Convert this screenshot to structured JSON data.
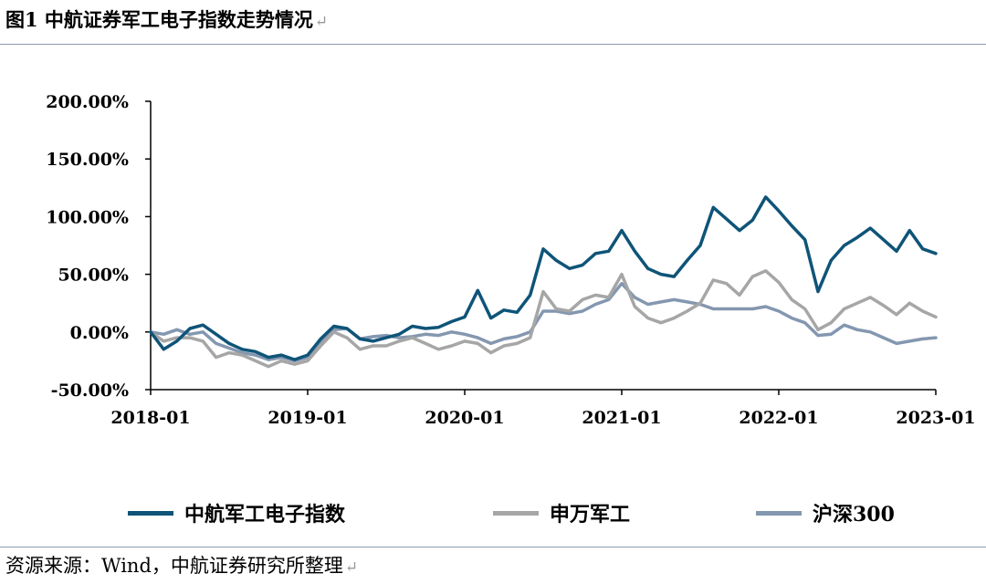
{
  "figure": {
    "title": "图1 中航证券军工电子指数走势情况",
    "source": "资源来源：Wind，中航证券研究所整理"
  },
  "chart_data": {
    "type": "line",
    "title": "",
    "xlabel": "",
    "ylabel": "",
    "x_ticks": [
      "2018-01",
      "2019-01",
      "2020-01",
      "2021-01",
      "2022-01",
      "2023-01"
    ],
    "y_ticks": [
      "200.00%",
      "150.00%",
      "100.00%",
      "50.00%",
      "0.00%",
      "-50.00%"
    ],
    "x_range": [
      "2018-01",
      "2023-01"
    ],
    "ylim": [
      -50,
      200
    ],
    "y_unit": "%",
    "grid": false,
    "legend_position": "bottom",
    "series": [
      {
        "name": "中航军工电子指数",
        "color": "#0f5478",
        "points": [
          [
            "2018-01",
            0
          ],
          [
            "2018-02",
            -15
          ],
          [
            "2018-03",
            -8
          ],
          [
            "2018-04",
            3
          ],
          [
            "2018-05",
            6
          ],
          [
            "2018-06",
            -2
          ],
          [
            "2018-07",
            -10
          ],
          [
            "2018-08",
            -15
          ],
          [
            "2018-09",
            -17
          ],
          [
            "2018-10",
            -22
          ],
          [
            "2018-11",
            -20
          ],
          [
            "2018-12",
            -24
          ],
          [
            "2019-01",
            -20
          ],
          [
            "2019-02",
            -6
          ],
          [
            "2019-03",
            5
          ],
          [
            "2019-04",
            3
          ],
          [
            "2019-05",
            -6
          ],
          [
            "2019-06",
            -8
          ],
          [
            "2019-07",
            -5
          ],
          [
            "2019-08",
            -2
          ],
          [
            "2019-09",
            5
          ],
          [
            "2019-10",
            3
          ],
          [
            "2019-11",
            4
          ],
          [
            "2019-12",
            9
          ],
          [
            "2020-01",
            13
          ],
          [
            "2020-02",
            36
          ],
          [
            "2020-03",
            12
          ],
          [
            "2020-04",
            19
          ],
          [
            "2020-05",
            17
          ],
          [
            "2020-06",
            32
          ],
          [
            "2020-07",
            72
          ],
          [
            "2020-08",
            62
          ],
          [
            "2020-09",
            55
          ],
          [
            "2020-10",
            58
          ],
          [
            "2020-11",
            68
          ],
          [
            "2020-12",
            70
          ],
          [
            "2021-01",
            88
          ],
          [
            "2021-02",
            70
          ],
          [
            "2021-03",
            55
          ],
          [
            "2021-04",
            50
          ],
          [
            "2021-05",
            48
          ],
          [
            "2021-06",
            62
          ],
          [
            "2021-07",
            75
          ],
          [
            "2021-08",
            108
          ],
          [
            "2021-09",
            98
          ],
          [
            "2021-10",
            88
          ],
          [
            "2021-11",
            97
          ],
          [
            "2021-12",
            117
          ],
          [
            "2022-01",
            105
          ],
          [
            "2022-02",
            92
          ],
          [
            "2022-03",
            80
          ],
          [
            "2022-04",
            35
          ],
          [
            "2022-05",
            62
          ],
          [
            "2022-06",
            75
          ],
          [
            "2022-07",
            82
          ],
          [
            "2022-08",
            90
          ],
          [
            "2022-09",
            80
          ],
          [
            "2022-10",
            70
          ],
          [
            "2022-11",
            88
          ],
          [
            "2022-12",
            72
          ],
          [
            "2023-01",
            68
          ]
        ]
      },
      {
        "name": "申万军工",
        "color": "#a6a6a6",
        "points": [
          [
            "2018-01",
            0
          ],
          [
            "2018-02",
            -8
          ],
          [
            "2018-03",
            -5
          ],
          [
            "2018-04",
            -5
          ],
          [
            "2018-05",
            -8
          ],
          [
            "2018-06",
            -22
          ],
          [
            "2018-07",
            -18
          ],
          [
            "2018-08",
            -20
          ],
          [
            "2018-09",
            -25
          ],
          [
            "2018-10",
            -30
          ],
          [
            "2018-11",
            -25
          ],
          [
            "2018-12",
            -28
          ],
          [
            "2019-01",
            -25
          ],
          [
            "2019-02",
            -12
          ],
          [
            "2019-03",
            0
          ],
          [
            "2019-04",
            -5
          ],
          [
            "2019-05",
            -15
          ],
          [
            "2019-06",
            -12
          ],
          [
            "2019-07",
            -12
          ],
          [
            "2019-08",
            -8
          ],
          [
            "2019-09",
            -5
          ],
          [
            "2019-10",
            -10
          ],
          [
            "2019-11",
            -15
          ],
          [
            "2019-12",
            -12
          ],
          [
            "2020-01",
            -8
          ],
          [
            "2020-02",
            -10
          ],
          [
            "2020-03",
            -18
          ],
          [
            "2020-04",
            -12
          ],
          [
            "2020-05",
            -10
          ],
          [
            "2020-06",
            -5
          ],
          [
            "2020-07",
            35
          ],
          [
            "2020-08",
            20
          ],
          [
            "2020-09",
            18
          ],
          [
            "2020-10",
            28
          ],
          [
            "2020-11",
            32
          ],
          [
            "2020-12",
            30
          ],
          [
            "2021-01",
            50
          ],
          [
            "2021-02",
            22
          ],
          [
            "2021-03",
            12
          ],
          [
            "2021-04",
            8
          ],
          [
            "2021-05",
            12
          ],
          [
            "2021-06",
            18
          ],
          [
            "2021-07",
            25
          ],
          [
            "2021-08",
            45
          ],
          [
            "2021-09",
            42
          ],
          [
            "2021-10",
            32
          ],
          [
            "2021-11",
            48
          ],
          [
            "2021-12",
            53
          ],
          [
            "2022-01",
            43
          ],
          [
            "2022-02",
            28
          ],
          [
            "2022-03",
            20
          ],
          [
            "2022-04",
            2
          ],
          [
            "2022-05",
            8
          ],
          [
            "2022-06",
            20
          ],
          [
            "2022-07",
            25
          ],
          [
            "2022-08",
            30
          ],
          [
            "2022-09",
            23
          ],
          [
            "2022-10",
            15
          ],
          [
            "2022-11",
            25
          ],
          [
            "2022-12",
            18
          ],
          [
            "2023-01",
            13
          ]
        ]
      },
      {
        "name": "沪深300",
        "color": "#8497b0",
        "points": [
          [
            "2018-01",
            0
          ],
          [
            "2018-02",
            -2
          ],
          [
            "2018-03",
            2
          ],
          [
            "2018-04",
            -2
          ],
          [
            "2018-05",
            0
          ],
          [
            "2018-06",
            -10
          ],
          [
            "2018-07",
            -14
          ],
          [
            "2018-08",
            -18
          ],
          [
            "2018-09",
            -20
          ],
          [
            "2018-10",
            -24
          ],
          [
            "2018-11",
            -22
          ],
          [
            "2018-12",
            -25
          ],
          [
            "2019-01",
            -22
          ],
          [
            "2019-02",
            -8
          ],
          [
            "2019-03",
            2
          ],
          [
            "2019-04",
            3
          ],
          [
            "2019-05",
            -6
          ],
          [
            "2019-06",
            -4
          ],
          [
            "2019-07",
            -3
          ],
          [
            "2019-08",
            -5
          ],
          [
            "2019-09",
            -4
          ],
          [
            "2019-10",
            -2
          ],
          [
            "2019-11",
            -3
          ],
          [
            "2019-12",
            0
          ],
          [
            "2020-01",
            -2
          ],
          [
            "2020-02",
            -5
          ],
          [
            "2020-03",
            -10
          ],
          [
            "2020-04",
            -6
          ],
          [
            "2020-05",
            -4
          ],
          [
            "2020-06",
            0
          ],
          [
            "2020-07",
            18
          ],
          [
            "2020-08",
            18
          ],
          [
            "2020-09",
            16
          ],
          [
            "2020-10",
            18
          ],
          [
            "2020-11",
            24
          ],
          [
            "2020-12",
            28
          ],
          [
            "2021-01",
            42
          ],
          [
            "2021-02",
            30
          ],
          [
            "2021-03",
            24
          ],
          [
            "2021-04",
            26
          ],
          [
            "2021-05",
            28
          ],
          [
            "2021-06",
            26
          ],
          [
            "2021-07",
            24
          ],
          [
            "2021-08",
            20
          ],
          [
            "2021-09",
            20
          ],
          [
            "2021-10",
            20
          ],
          [
            "2021-11",
            20
          ],
          [
            "2021-12",
            22
          ],
          [
            "2022-01",
            18
          ],
          [
            "2022-02",
            12
          ],
          [
            "2022-03",
            8
          ],
          [
            "2022-04",
            -3
          ],
          [
            "2022-05",
            -2
          ],
          [
            "2022-06",
            6
          ],
          [
            "2022-07",
            2
          ],
          [
            "2022-08",
            0
          ],
          [
            "2022-09",
            -5
          ],
          [
            "2022-10",
            -10
          ],
          [
            "2022-11",
            -8
          ],
          [
            "2022-12",
            -6
          ],
          [
            "2023-01",
            -5
          ]
        ]
      }
    ]
  }
}
